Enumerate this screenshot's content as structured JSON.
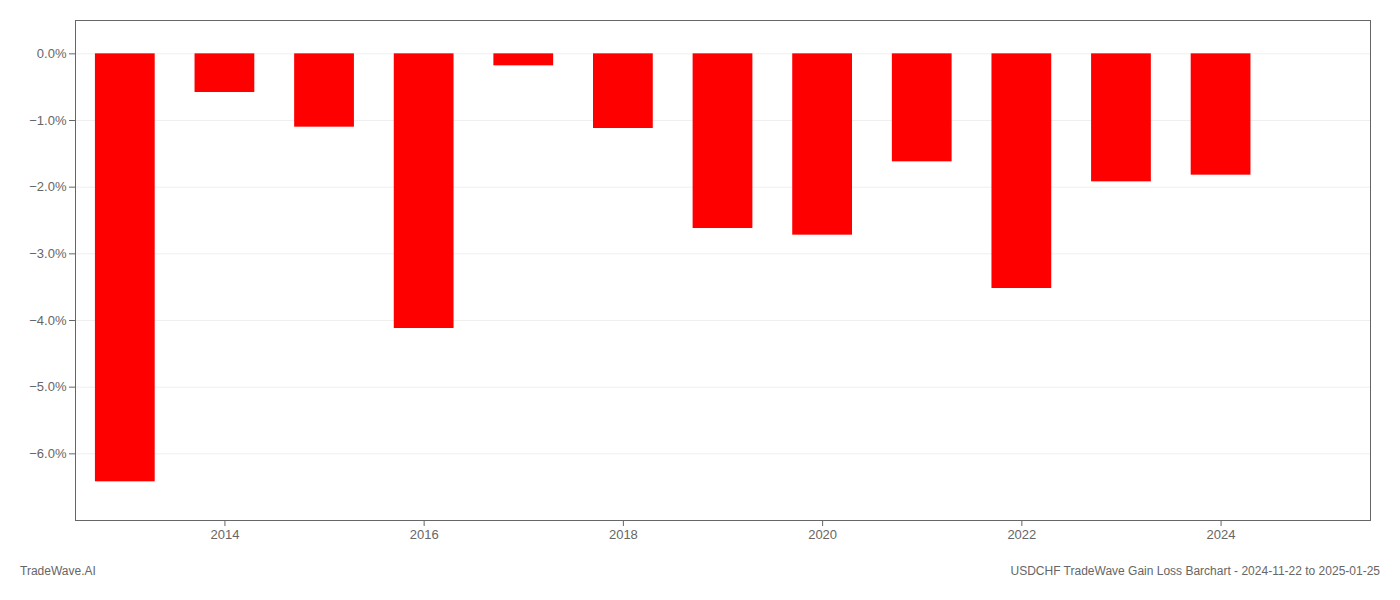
{
  "chart_data": {
    "type": "bar",
    "x": [
      2013,
      2014,
      2015,
      2016,
      2017,
      2018,
      2019,
      2020,
      2021,
      2022,
      2023,
      2024
    ],
    "values": [
      -6.42,
      -0.58,
      -1.1,
      -4.12,
      -0.18,
      -1.12,
      -2.62,
      -2.72,
      -1.62,
      -3.52,
      -1.92,
      -1.82
    ],
    "color": "#FF0000",
    "xlim": [
      2012.5,
      2025.5
    ],
    "xticks": [
      2014,
      2016,
      2018,
      2020,
      2022,
      2024
    ],
    "ylim": [
      -7.0,
      0.5
    ],
    "yticks": [
      {
        "value": 0.0,
        "label": "0.0%"
      },
      {
        "value": -1.0,
        "label": "−1.0%"
      },
      {
        "value": -2.0,
        "label": "−2.0%"
      },
      {
        "value": -3.0,
        "label": "−3.0%"
      },
      {
        "value": -4.0,
        "label": "−4.0%"
      },
      {
        "value": -5.0,
        "label": "−5.0%"
      },
      {
        "value": -6.0,
        "label": "−6.0%"
      }
    ],
    "grid": true,
    "annotations": [
      "TradeWave.AI",
      "USDCHF TradeWave Gain Loss Barchart - 2024-11-22 to 2025-01-25"
    ]
  }
}
